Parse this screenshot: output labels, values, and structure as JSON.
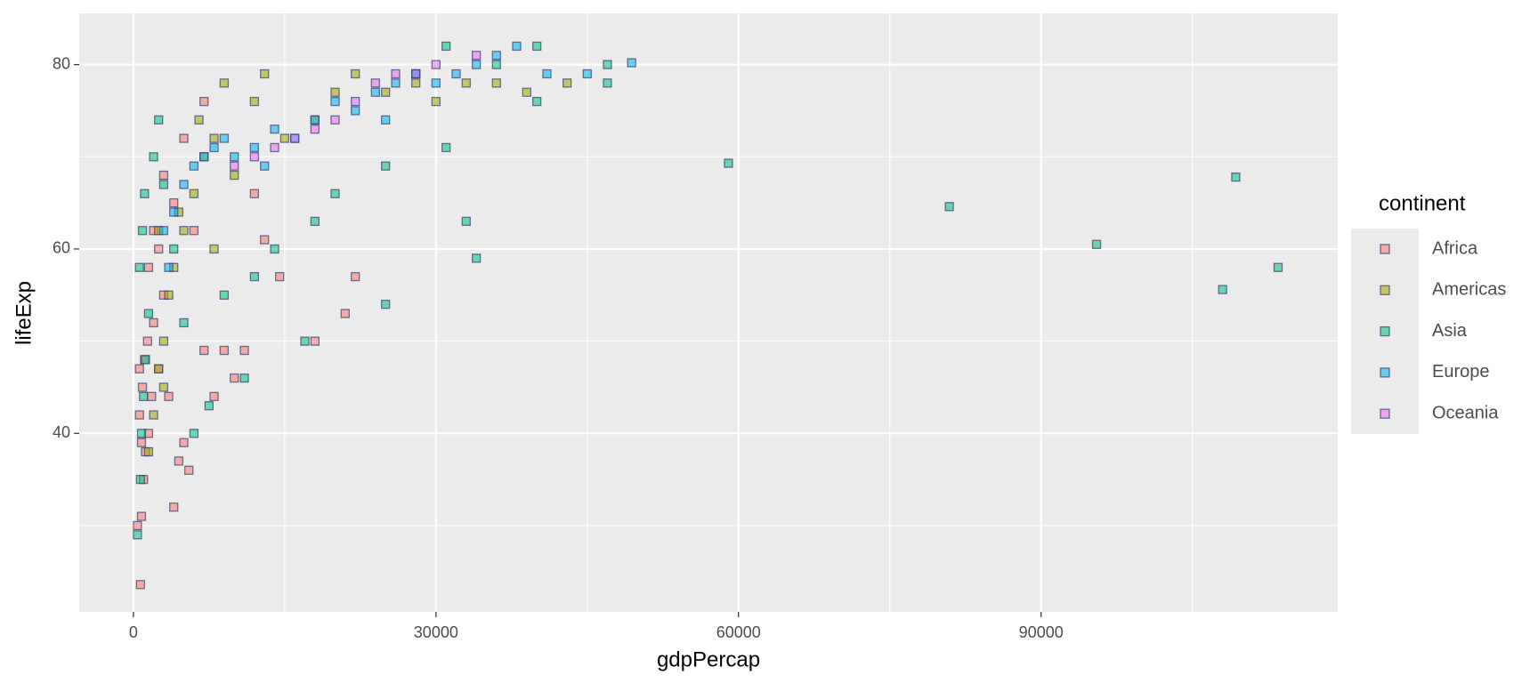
{
  "chart_data": {
    "type": "scatter",
    "x_label": "gdpPercap",
    "y_label": "lifeExp",
    "legend_title": "continent",
    "legend_position": "right",
    "grid": true,
    "xlim": [
      -5374,
      119414
    ],
    "ylim": [
      20.64,
      85.56
    ],
    "xticks": [
      0,
      30000,
      60000,
      90000
    ],
    "yticks": [
      40,
      60,
      80
    ],
    "x_minor_ticks": [
      15000,
      45000,
      75000,
      105000
    ],
    "y_minor_ticks": [
      30,
      50,
      70
    ],
    "series": [
      {
        "name": "Africa",
        "color": "#F8766D",
        "x": [
          700,
          400,
          800,
          1000,
          1200,
          1500,
          600,
          900,
          1100,
          1400,
          2000,
          2500,
          3000,
          3500,
          4000,
          4500,
          5000,
          5500,
          7000,
          8000,
          10000,
          11000,
          12000,
          13000,
          14500,
          18000,
          21000,
          22000,
          2000,
          3000,
          5000,
          7000,
          1500,
          800,
          1800,
          600,
          2500,
          4000,
          6000,
          9000
        ],
        "values": [
          23.6,
          30,
          31,
          35,
          38,
          40,
          42,
          45,
          48,
          50,
          52,
          47,
          55,
          44,
          32,
          37,
          39,
          36,
          49,
          44,
          46,
          49,
          66,
          61,
          57,
          50,
          53,
          57,
          62,
          68,
          72,
          76,
          58,
          39,
          44,
          47,
          60,
          65,
          62,
          49
        ]
      },
      {
        "name": "Americas",
        "color": "#A3A500",
        "x": [
          1500,
          2000,
          2500,
          3000,
          3500,
          4000,
          5000,
          6000,
          7000,
          8000,
          9000,
          10000,
          12000,
          13000,
          15000,
          18000,
          20000,
          22000,
          25000,
          28000,
          30000,
          33000,
          36000,
          39000,
          43000,
          4500,
          6500,
          8000,
          3000,
          2500
        ],
        "values": [
          38,
          42,
          47,
          50,
          55,
          58,
          62,
          66,
          70,
          72,
          78,
          68,
          76,
          79,
          72,
          74,
          77,
          79,
          77,
          78,
          76,
          78,
          78,
          77,
          78,
          64,
          74,
          60,
          45,
          62
        ]
      },
      {
        "name": "Asia",
        "color": "#00BF7D",
        "x": [
          400,
          700,
          800,
          1000,
          1200,
          1500,
          600,
          900,
          1100,
          2000,
          2500,
          3000,
          4000,
          5000,
          6000,
          7500,
          9000,
          11000,
          12000,
          14000,
          17000,
          18000,
          20000,
          25000,
          25000,
          28000,
          31000,
          31000,
          33000,
          34000,
          36000,
          40000,
          40000,
          47000,
          47000,
          59000,
          80900,
          95500,
          108000,
          109300,
          113500
        ],
        "values": [
          29,
          35,
          40,
          44,
          48,
          53,
          58,
          62,
          66,
          70,
          74,
          67,
          60,
          52,
          40,
          43,
          55,
          46,
          57,
          60,
          50,
          63,
          66,
          54,
          69,
          79,
          82,
          71,
          63,
          59,
          80,
          82,
          76,
          80,
          78,
          69.3,
          64.6,
          60.5,
          55.6,
          67.8,
          58
        ]
      },
      {
        "name": "Europe",
        "color": "#00B0F6",
        "x": [
          3000,
          4000,
          5000,
          6000,
          7000,
          8000,
          9000,
          10000,
          12000,
          14000,
          16000,
          18000,
          20000,
          22000,
          24000,
          26000,
          28000,
          30000,
          32000,
          34000,
          36000,
          38000,
          41000,
          45000,
          49400,
          13000,
          25000,
          3500
        ],
        "values": [
          62,
          64,
          67,
          69,
          70,
          71,
          72,
          70,
          71,
          73,
          72,
          74,
          76,
          75,
          77,
          78,
          79,
          78,
          79,
          80,
          81,
          82,
          79,
          79,
          80.2,
          69,
          74,
          58
        ]
      },
      {
        "name": "Oceania",
        "color": "#E76BF3",
        "x": [
          10000,
          12000,
          14000,
          16000,
          18000,
          20000,
          22000,
          24000,
          26000,
          28000,
          30000,
          34000
        ],
        "values": [
          69,
          70,
          71,
          72,
          73,
          74,
          76,
          78,
          79,
          79,
          80,
          81
        ]
      }
    ]
  }
}
